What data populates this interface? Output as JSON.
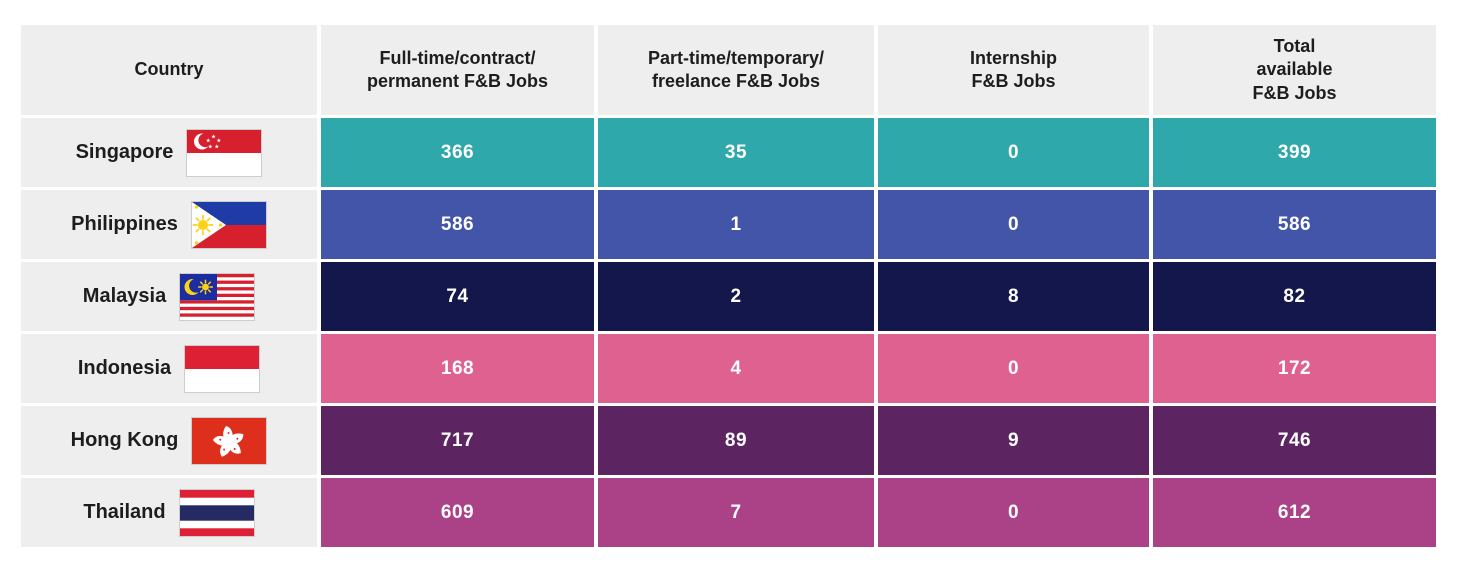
{
  "chart_data": {
    "type": "table",
    "columns": [
      "Country",
      "Full-time/contract/permanent F&B Jobs",
      "Part-time/temporary/freelance F&B Jobs",
      "Internship F&B Jobs",
      "Total available F&B Jobs"
    ],
    "rows": [
      {
        "country": "Singapore",
        "full_time": 366,
        "part_time": 35,
        "internship": 0,
        "total": 399
      },
      {
        "country": "Philippines",
        "full_time": 586,
        "part_time": 1,
        "internship": 0,
        "total": 586
      },
      {
        "country": "Malaysia",
        "full_time": 74,
        "part_time": 2,
        "internship": 8,
        "total": 82
      },
      {
        "country": "Indonesia",
        "full_time": 168,
        "part_time": 4,
        "internship": 0,
        "total": 172
      },
      {
        "country": "Hong Kong",
        "full_time": 717,
        "part_time": 89,
        "internship": 9,
        "total": 746
      },
      {
        "country": "Thailand",
        "full_time": 609,
        "part_time": 7,
        "internship": 0,
        "total": 612
      }
    ],
    "legend": "none",
    "grid": "off"
  },
  "table": {
    "headers": {
      "country": "Country",
      "full_time": "Full-time/contract/\npermanent F&B Jobs",
      "part_time": "Part-time/temporary/\nfreelance F&B Jobs",
      "internship": "Internship\nF&B Jobs",
      "total": "Total\navailable\nF&B Jobs"
    },
    "rows": [
      {
        "country": "Singapore",
        "flag_icon": "singapore-flag",
        "row_color": "#2EA8AB",
        "values": [
          "366",
          "35",
          "0",
          "399"
        ]
      },
      {
        "country": "Philippines",
        "flag_icon": "philippines-flag",
        "row_color": "#4355A9",
        "values": [
          "586",
          "1",
          "0",
          "586"
        ]
      },
      {
        "country": "Malaysia",
        "flag_icon": "malaysia-flag",
        "row_color": "#14174B",
        "values": [
          "74",
          "2",
          "8",
          "82"
        ]
      },
      {
        "country": "Indonesia",
        "flag_icon": "indonesia-flag",
        "row_color": "#DF6190",
        "values": [
          "168",
          "4",
          "0",
          "172"
        ]
      },
      {
        "country": "Hong Kong",
        "flag_icon": "hong-kong-flag",
        "row_color": "#5C2562",
        "values": [
          "717",
          "89",
          "9",
          "746"
        ]
      },
      {
        "country": "Thailand",
        "flag_icon": "thailand-flag",
        "row_color": "#AB4186",
        "values": [
          "609",
          "7",
          "0",
          "612"
        ]
      }
    ],
    "colors": {
      "header_bg": "#EFEEEE",
      "header_text": "#1D1D1D",
      "value_text": "#FFFFFF",
      "row_colors": [
        "#2EA8AB",
        "#4355A9",
        "#14174B",
        "#DF6190",
        "#5C2562",
        "#AB4186"
      ]
    }
  }
}
